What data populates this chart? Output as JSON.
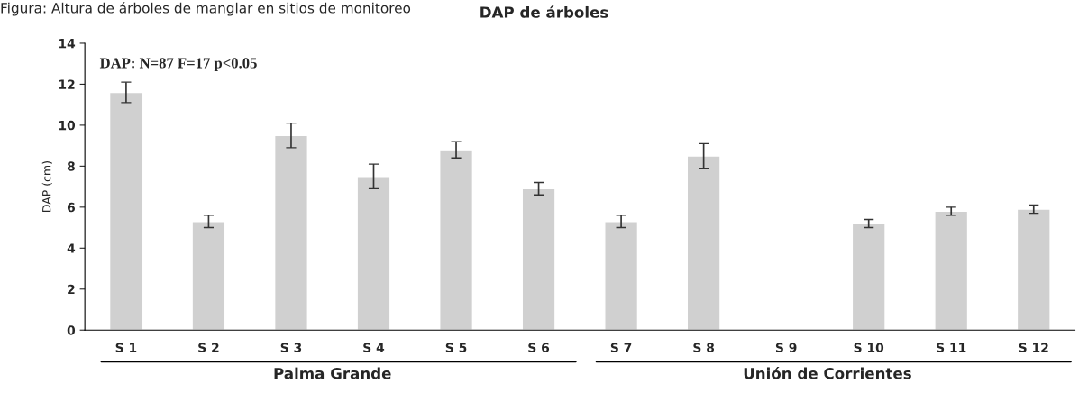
{
  "chart_data": {
    "type": "bar",
    "title": "DAP de árboles",
    "ylabel": "DAP (cm)",
    "categories": [
      "S 1",
      "S 2",
      "S 3",
      "S 4",
      "S 5",
      "S 6",
      "S 7",
      "S 8",
      "S 9",
      "S 10",
      "S 11",
      "S 12"
    ],
    "values": [
      11.6,
      5.3,
      9.5,
      7.5,
      8.8,
      6.9,
      5.3,
      8.5,
      null,
      5.2,
      5.8,
      5.9
    ],
    "errors": [
      0.5,
      0.3,
      0.6,
      0.6,
      0.4,
      0.3,
      0.3,
      0.6,
      null,
      0.2,
      0.2,
      0.2
    ],
    "color": "#d0d0d0",
    "ylim": [
      0,
      14
    ],
    "yticks": [
      0,
      2,
      4,
      6,
      8,
      10,
      12,
      14
    ],
    "grid": false,
    "annotations": [
      "Figura: Altura de árboles de manglar en sitios de monitoreo",
      "DAP: N=87 F=17 p<0.05",
      "Palma Grande",
      "Unión de Corrientes"
    ]
  }
}
